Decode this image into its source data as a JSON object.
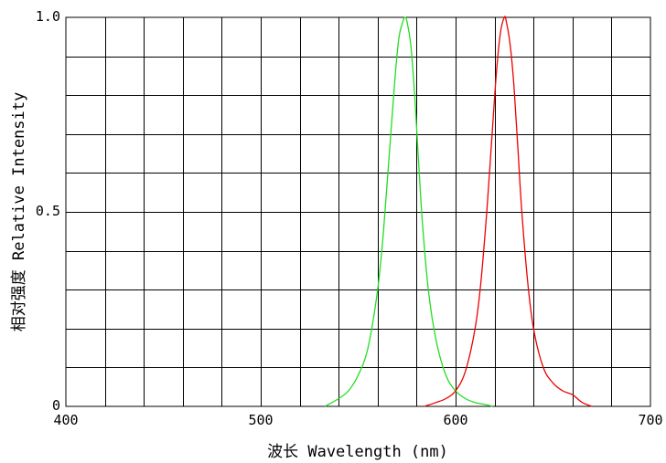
{
  "chart_data": {
    "type": "line",
    "xlabel": "波长 Wavelength (nm)",
    "ylabel": "相对强度 Relative Intensity",
    "xlim": [
      400,
      700
    ],
    "ylim": [
      0,
      1.0
    ],
    "x_ticks": [
      {
        "value": 400,
        "label": "400"
      },
      {
        "value": 500,
        "label": "500"
      },
      {
        "value": 600,
        "label": "600"
      },
      {
        "value": 700,
        "label": "700"
      }
    ],
    "y_ticks": [
      {
        "value": 0,
        "label": "0"
      },
      {
        "value": 0.5,
        "label": "0.5"
      },
      {
        "value": 1.0,
        "label": "1.0"
      }
    ],
    "grid": true,
    "series": [
      {
        "color": "#22dd22",
        "x": [
          533,
          540,
          545,
          550,
          555,
          560,
          563,
          566,
          569,
          571,
          573,
          574,
          575,
          577,
          579,
          581,
          583,
          586,
          590,
          595,
          600,
          605,
          610,
          615,
          619
        ],
        "values": [
          0.0,
          0.02,
          0.04,
          0.08,
          0.15,
          0.3,
          0.45,
          0.65,
          0.85,
          0.95,
          0.99,
          1.0,
          0.99,
          0.93,
          0.8,
          0.63,
          0.47,
          0.3,
          0.17,
          0.08,
          0.04,
          0.02,
          0.01,
          0.005,
          0.0
        ]
      },
      {
        "color": "#ee0000",
        "x": [
          584,
          590,
          595,
          600,
          605,
          610,
          613,
          616,
          619,
          621,
          623,
          625,
          626,
          628,
          630,
          632,
          634,
          637,
          640,
          645,
          650,
          655,
          660,
          665,
          670
        ],
        "values": [
          0.0,
          0.01,
          0.02,
          0.04,
          0.09,
          0.2,
          0.32,
          0.5,
          0.72,
          0.86,
          0.96,
          1.0,
          0.99,
          0.93,
          0.82,
          0.66,
          0.5,
          0.32,
          0.2,
          0.1,
          0.06,
          0.04,
          0.03,
          0.01,
          0.0
        ]
      }
    ]
  }
}
